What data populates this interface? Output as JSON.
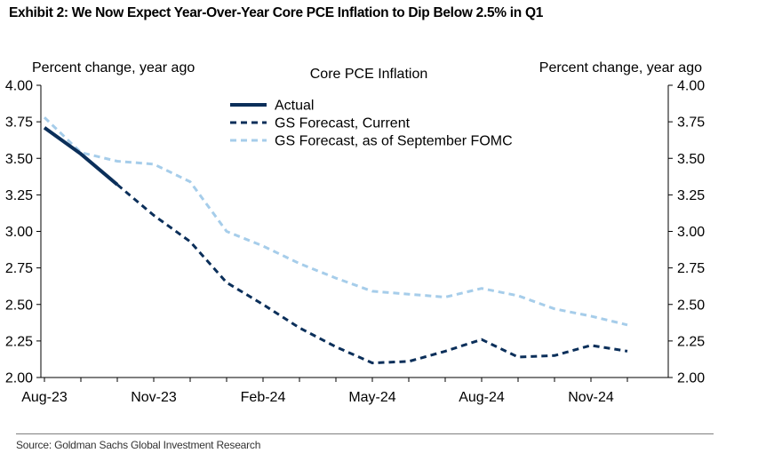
{
  "exhibit_title": "Exhibit 2: We Now Expect Year-Over-Year Core PCE Inflation to Dip Below 2.5% in Q1",
  "source": "Source: Goldman Sachs Global Investment Research",
  "chart_data": {
    "type": "line",
    "title": "Core PCE Inflation",
    "ylabel_left": "Percent change, year ago",
    "ylabel_right": "Percent change, year ago",
    "ylim": [
      2.0,
      4.0
    ],
    "y_ticks": [
      "2.00",
      "2.25",
      "2.50",
      "2.75",
      "3.00",
      "3.25",
      "3.50",
      "3.75",
      "4.00"
    ],
    "x_ticks": [
      "Aug-23",
      "Nov-23",
      "Feb-24",
      "May-24",
      "Aug-24",
      "Nov-24"
    ],
    "x": [
      "Aug-23",
      "Sep-23",
      "Oct-23",
      "Nov-23",
      "Dec-23",
      "Jan-24",
      "Feb-24",
      "Mar-24",
      "Apr-24",
      "May-24",
      "Jun-24",
      "Jul-24",
      "Aug-24",
      "Sep-24",
      "Oct-24",
      "Nov-24",
      "Dec-24"
    ],
    "legend_position": "top-center",
    "grid": false,
    "series": [
      {
        "name": "Actual",
        "color": "#0b2f5a",
        "style": "solid",
        "values": [
          3.71,
          3.53,
          3.32,
          null,
          null,
          null,
          null,
          null,
          null,
          null,
          null,
          null,
          null,
          null,
          null,
          null,
          null
        ]
      },
      {
        "name": "GS Forecast, Current",
        "color": "#0b2f5a",
        "style": "dashed",
        "values": [
          null,
          null,
          3.32,
          3.11,
          2.93,
          2.65,
          2.5,
          2.34,
          2.21,
          2.1,
          2.11,
          2.18,
          2.26,
          2.14,
          2.15,
          2.22,
          2.18
        ]
      },
      {
        "name": "GS Forecast, as of September FOMC",
        "color": "#a6cdea",
        "style": "dashed",
        "values": [
          3.78,
          3.54,
          3.48,
          3.46,
          3.34,
          3.0,
          2.9,
          2.78,
          2.68,
          2.59,
          2.57,
          2.55,
          2.61,
          2.56,
          2.47,
          2.42,
          2.36
        ]
      }
    ]
  }
}
